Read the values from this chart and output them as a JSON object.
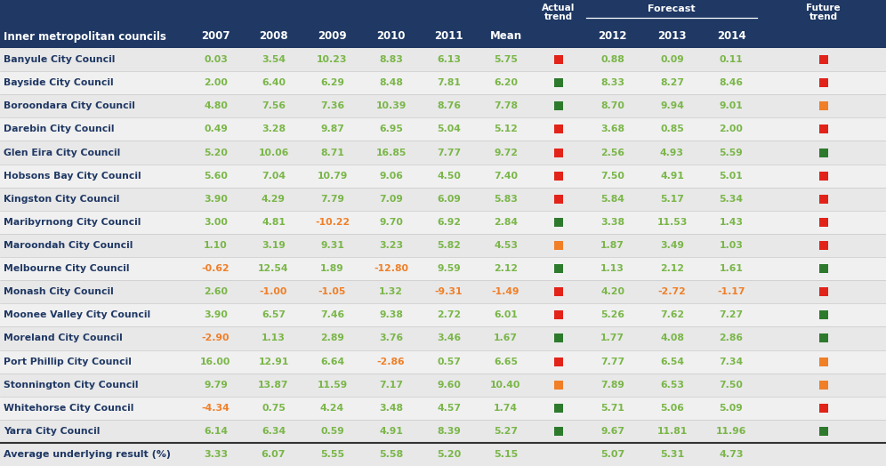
{
  "header_bg": "#1f3864",
  "row_bg_odd": "#e8e8e8",
  "row_bg_even": "#f0f0f0",
  "green_text": "#7ab648",
  "orange_text": "#f07f27",
  "red_text": "#e2231a",
  "dark_text": "#1f3864",
  "white": "#ffffff",
  "columns": [
    "Inner metropolitan councils",
    "2007",
    "2008",
    "2009",
    "2010",
    "2011",
    "Mean",
    "Actual\ntrend",
    "2012",
    "2013",
    "2014",
    "Future\ntrend"
  ],
  "rows": [
    [
      "Banyule City Council",
      "0.03",
      "3.54",
      "10.23",
      "8.83",
      "6.13",
      "5.75",
      "red_sq",
      "0.88",
      "0.09",
      "0.11",
      "red_sq"
    ],
    [
      "Bayside City Council",
      "2.00",
      "6.40",
      "6.29",
      "8.48",
      "7.81",
      "6.20",
      "green_sq",
      "8.33",
      "8.27",
      "8.46",
      "red_sq"
    ],
    [
      "Boroondara City Council",
      "4.80",
      "7.56",
      "7.36",
      "10.39",
      "8.76",
      "7.78",
      "green_sq",
      "8.70",
      "9.94",
      "9.01",
      "orange_sq"
    ],
    [
      "Darebin City Council",
      "0.49",
      "3.28",
      "9.87",
      "6.95",
      "5.04",
      "5.12",
      "red_sq",
      "3.68",
      "0.85",
      "2.00",
      "red_sq"
    ],
    [
      "Glen Eira City Council",
      "5.20",
      "10.06",
      "8.71",
      "16.85",
      "7.77",
      "9.72",
      "red_sq",
      "2.56",
      "4.93",
      "5.59",
      "green_sq"
    ],
    [
      "Hobsons Bay City Council",
      "5.60",
      "7.04",
      "10.79",
      "9.06",
      "4.50",
      "7.40",
      "red_sq",
      "7.50",
      "4.91",
      "5.01",
      "red_sq"
    ],
    [
      "Kingston City Council",
      "3.90",
      "4.29",
      "7.79",
      "7.09",
      "6.09",
      "5.83",
      "red_sq",
      "5.84",
      "5.17",
      "5.34",
      "red_sq"
    ],
    [
      "Maribyrnong City Council",
      "3.00",
      "4.81",
      "-10.22",
      "9.70",
      "6.92",
      "2.84",
      "green_sq",
      "3.38",
      "11.53",
      "1.43",
      "red_sq"
    ],
    [
      "Maroondah City Council",
      "1.10",
      "3.19",
      "9.31",
      "3.23",
      "5.82",
      "4.53",
      "orange_sq",
      "1.87",
      "3.49",
      "1.03",
      "red_sq"
    ],
    [
      "Melbourne City Council",
      "-0.62",
      "12.54",
      "1.89",
      "-12.80",
      "9.59",
      "2.12",
      "green_sq",
      "1.13",
      "2.12",
      "1.61",
      "green_sq"
    ],
    [
      "Monash City Council",
      "2.60",
      "-1.00",
      "-1.05",
      "1.32",
      "-9.31",
      "-1.49",
      "red_sq",
      "4.20",
      "-2.72",
      "-1.17",
      "red_sq"
    ],
    [
      "Moonee Valley City Council",
      "3.90",
      "6.57",
      "7.46",
      "9.38",
      "2.72",
      "6.01",
      "red_sq",
      "5.26",
      "7.62",
      "7.27",
      "green_sq"
    ],
    [
      "Moreland City Council",
      "-2.90",
      "1.13",
      "2.89",
      "3.76",
      "3.46",
      "1.67",
      "green_sq",
      "1.77",
      "4.08",
      "2.86",
      "green_sq"
    ],
    [
      "Port Phillip City Council",
      "16.00",
      "12.91",
      "6.64",
      "-2.86",
      "0.57",
      "6.65",
      "red_sq",
      "7.77",
      "6.54",
      "7.34",
      "orange_sq"
    ],
    [
      "Stonnington City Council",
      "9.79",
      "13.87",
      "11.59",
      "7.17",
      "9.60",
      "10.40",
      "orange_sq",
      "7.89",
      "6.53",
      "7.50",
      "orange_sq"
    ],
    [
      "Whitehorse City Council",
      "-4.34",
      "0.75",
      "4.24",
      "3.48",
      "4.57",
      "1.74",
      "green_sq",
      "5.71",
      "5.06",
      "5.09",
      "red_sq"
    ],
    [
      "Yarra City Council",
      "6.14",
      "6.34",
      "0.59",
      "4.91",
      "8.39",
      "5.27",
      "green_sq",
      "9.67",
      "11.81",
      "11.96",
      "green_sq"
    ]
  ],
  "footer": [
    "Average underlying result (%)",
    "3.33",
    "6.07",
    "5.55",
    "5.58",
    "5.20",
    "5.15",
    "",
    "5.07",
    "5.31",
    "4.73",
    ""
  ]
}
